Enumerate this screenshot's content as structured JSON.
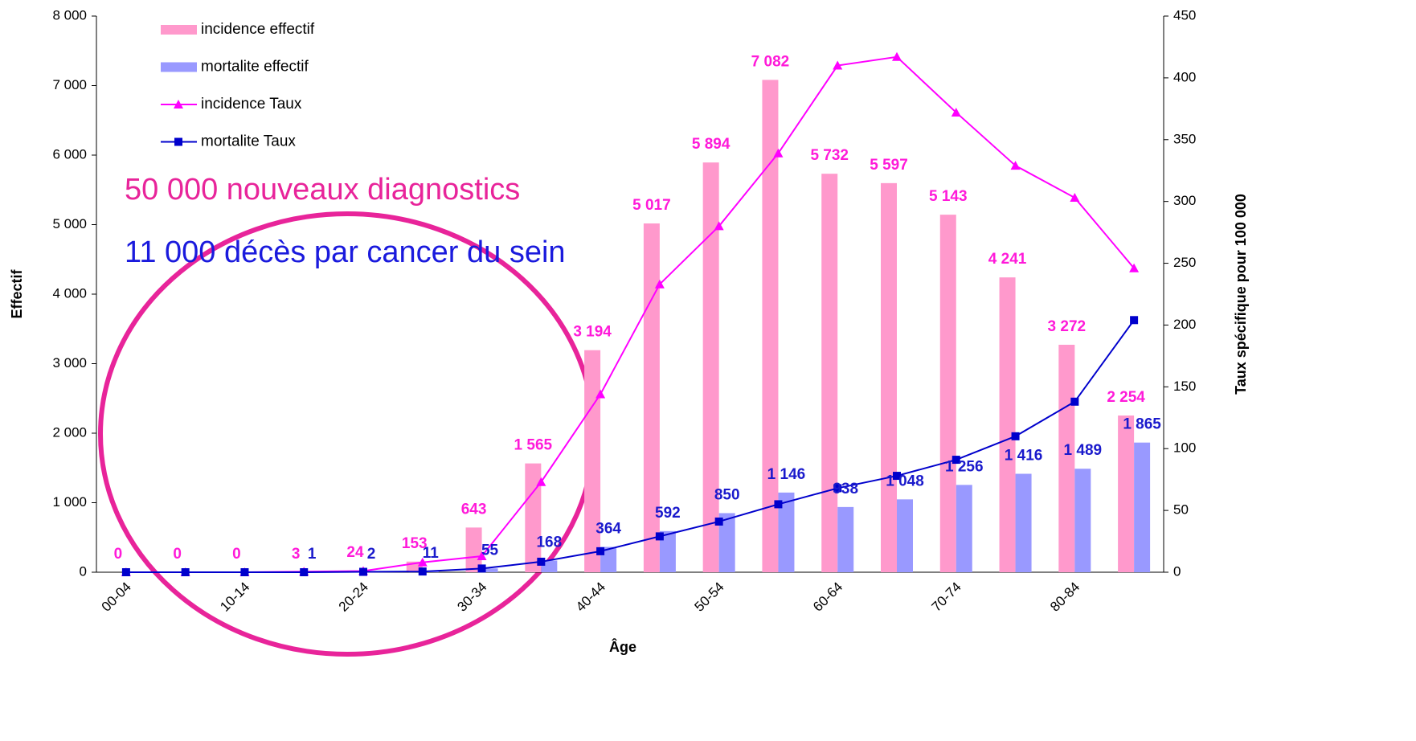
{
  "chart_data": {
    "type": "bar",
    "x_label": "Âge",
    "y_label": "Effectif",
    "y2_label": "Taux spécifique pour 100 000",
    "annotations": [
      "50 000 nouveaux diagnostics",
      "11 000 décès par cancer du sein"
    ],
    "categories": [
      "00-04",
      null,
      "10-14",
      null,
      "20-24",
      null,
      "30-34",
      null,
      "40-44",
      null,
      "50-54",
      null,
      "60-64",
      null,
      "70-74",
      null,
      "80-84",
      null
    ],
    "ylim": [
      0,
      8000
    ],
    "yticks": [
      0,
      {
        "value": 1000,
        "label": "1 000"
      },
      {
        "value": 2000,
        "label": "2 000"
      },
      {
        "value": 3000,
        "label": "3 000"
      },
      {
        "value": 4000,
        "label": "4 000"
      },
      {
        "value": 5000,
        "label": "5 000"
      },
      {
        "value": 6000,
        "label": "6 000"
      },
      {
        "value": 7000,
        "label": "7 000"
      },
      {
        "value": 8000,
        "label": "8 000"
      }
    ],
    "y2lim": [
      0,
      450
    ],
    "y2ticks": [
      0,
      50,
      100,
      150,
      200,
      250,
      300,
      350,
      400,
      450
    ],
    "grid": false,
    "legend": "top-left",
    "series": [
      {
        "name": "incidence effectif",
        "type": "bar",
        "color": "#ff99cc",
        "label_color": "#ff1ad9",
        "values": [
          0,
          0,
          0,
          3,
          24,
          153,
          643,
          1565,
          3194,
          5017,
          5894,
          7082,
          5732,
          5597,
          5143,
          4241,
          3272,
          2254
        ],
        "value_labels": [
          "0",
          "0",
          "0",
          "3",
          "24",
          "153",
          "643",
          "1 565",
          "3 194",
          "5 017",
          "5 894",
          "7 082",
          "5 732",
          "5 597",
          "5 143",
          "4 241",
          "3 272",
          "2 254"
        ]
      },
      {
        "name": "mortalite effectif",
        "type": "bar",
        "color": "#9999ff",
        "label_color": "#1a1acc",
        "values": [
          0,
          0,
          0,
          1,
          2,
          11,
          55,
          168,
          364,
          592,
          850,
          1146,
          938,
          1048,
          1256,
          1416,
          1489,
          1865
        ],
        "value_labels": [
          null,
          null,
          null,
          "1",
          "2",
          "11",
          "55",
          "168",
          "364",
          "592",
          "850",
          "1 146",
          "938",
          "1 048",
          "1 256",
          "1 416",
          "1 489",
          "1 865"
        ]
      },
      {
        "name": "incidence Taux",
        "type": "line",
        "axis": "y2",
        "color": "#ff00ff",
        "marker": "triangle",
        "values": [
          0,
          0,
          0,
          0.5,
          1,
          8,
          13,
          73,
          144,
          233,
          280,
          339,
          410,
          417,
          372,
          329,
          303,
          246
        ]
      },
      {
        "name": "mortalite Taux",
        "type": "line",
        "axis": "y2",
        "color": "#0000cc",
        "marker": "square",
        "values": [
          0,
          0,
          0,
          0,
          0.3,
          0.6,
          3,
          8.5,
          17,
          29,
          41,
          55,
          68,
          78,
          91,
          110,
          138,
          204
        ]
      }
    ]
  }
}
